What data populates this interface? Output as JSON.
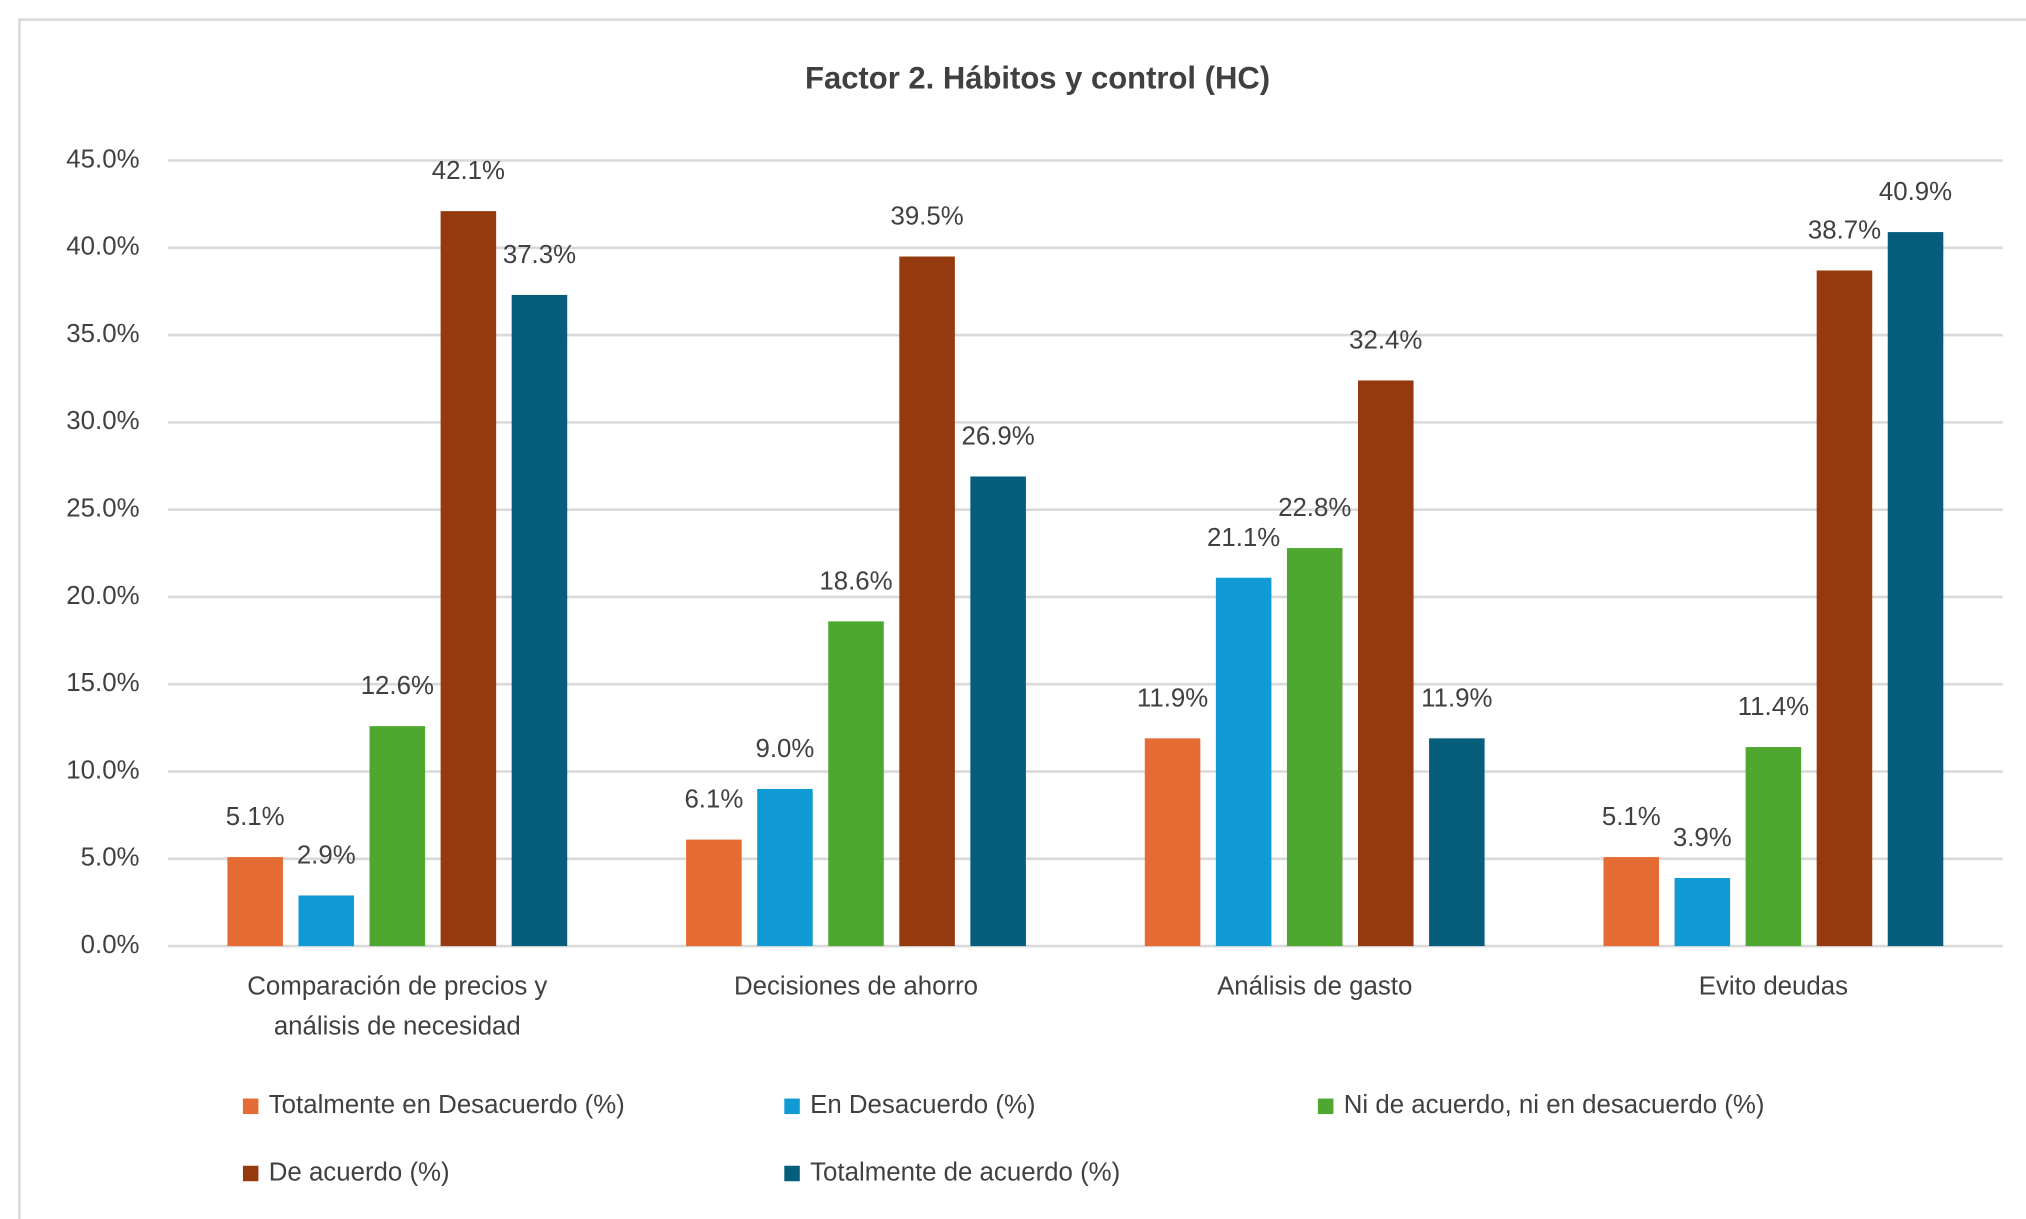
{
  "chart_data": {
    "type": "bar",
    "title": "Factor 2. Hábitos y control (HC)",
    "categories": [
      "Comparación de precios y análisis de necesidad",
      "Decisiones de ahorro",
      "Análisis de gasto",
      "Evito deudas"
    ],
    "series": [
      {
        "name": "Totalmente en Desacuerdo (%)",
        "color": "#e46c34",
        "values": [
          5.1,
          6.1,
          11.9,
          5.1
        ],
        "value_labels": [
          "5.1%",
          "6.1%",
          "11.9%",
          "5.1%"
        ]
      },
      {
        "name": "En Desacuerdo (%)",
        "color": "#119bd5",
        "values": [
          2.9,
          9.0,
          21.1,
          3.9
        ],
        "value_labels": [
          "2.9%",
          "9.0%",
          "21.1%",
          "3.9%"
        ]
      },
      {
        "name": "Ni de acuerdo, ni en desacuerdo (%)",
        "color": "#4ea72e",
        "values": [
          12.6,
          18.6,
          22.8,
          11.4
        ],
        "value_labels": [
          "12.6%",
          "18.6%",
          "22.8%",
          "11.4%"
        ]
      },
      {
        "name": "De acuerdo (%)",
        "color": "#953a0f",
        "values": [
          42.1,
          39.5,
          32.4,
          38.7
        ],
        "value_labels": [
          "42.1%",
          "39.5%",
          "32.4%",
          "38.7%"
        ]
      },
      {
        "name": "Totalmente de acuerdo (%)",
        "color": "#075e7c",
        "values": [
          37.3,
          26.9,
          11.9,
          40.9
        ],
        "value_labels": [
          "37.3%",
          "26.9%",
          "11.9%",
          "40.9%"
        ]
      }
    ],
    "ylim": [
      0,
      45
    ],
    "yticks": [
      {
        "value": 0,
        "label": "0.0%"
      },
      {
        "value": 5,
        "label": "5.0%"
      },
      {
        "value": 10,
        "label": "10.0%"
      },
      {
        "value": 15,
        "label": "15.0%"
      },
      {
        "value": 20,
        "label": "20.0%"
      },
      {
        "value": 25,
        "label": "25.0%"
      },
      {
        "value": 30,
        "label": "30.0%"
      },
      {
        "value": 35,
        "label": "35.0%"
      },
      {
        "value": 40,
        "label": "40.0%"
      },
      {
        "value": 45,
        "label": "45.0%"
      }
    ],
    "grid": true,
    "legend": "bottom"
  }
}
